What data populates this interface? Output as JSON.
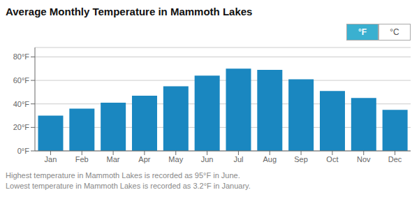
{
  "chart_data": {
    "type": "bar",
    "title": "Average Monthly Temperature in Mammoth Lakes",
    "categories": [
      "Jan",
      "Feb",
      "Mar",
      "Apr",
      "May",
      "Jun",
      "Jul",
      "Aug",
      "Sep",
      "Oct",
      "Nov",
      "Dec"
    ],
    "values": [
      30,
      36,
      41,
      47,
      55,
      64,
      70,
      69,
      61,
      51,
      45,
      35
    ],
    "color": "#1a87c0",
    "ylim": [
      0,
      88
    ],
    "yticks": [
      {
        "value": 0,
        "label": "0°F"
      },
      {
        "value": 20,
        "label": "20°F"
      },
      {
        "value": 40,
        "label": "40°F"
      },
      {
        "value": 60,
        "label": "60°F"
      },
      {
        "value": 80,
        "label": "80°F"
      }
    ],
    "grid": true,
    "annotation": "Highest temperature in Mammoth Lakes is recorded as 95°F in June.\nLowest temperature in Mammoth Lakes is recorded as 3.2°F in January.",
    "legend": "upper right",
    "legend_labels": [
      "°F",
      "°C"
    ],
    "legend_color": "#3ab0d0"
  }
}
